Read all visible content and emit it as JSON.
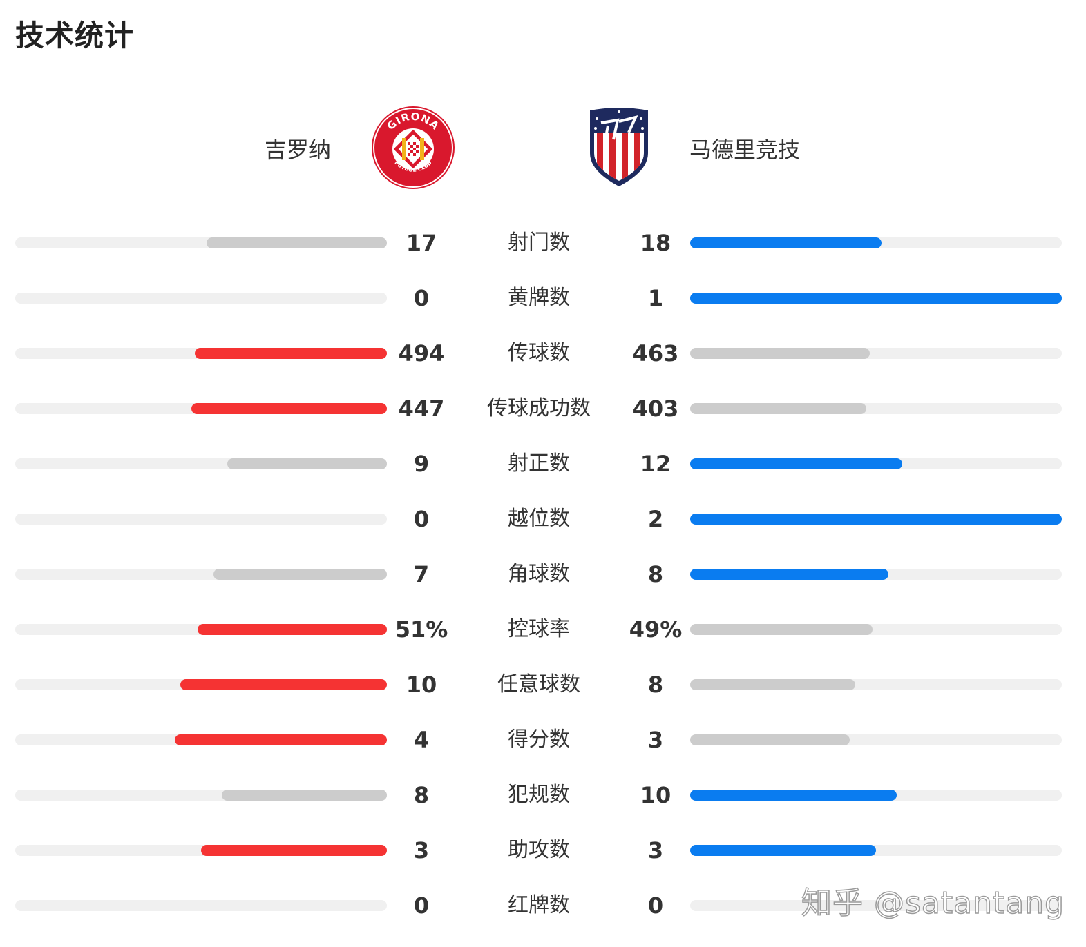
{
  "page": {
    "title": "技术统计"
  },
  "teams": {
    "home": {
      "name": "吉罗纳",
      "crest_text_top": "GIRONA",
      "crest_text_bottom": "FUTBOL CLUB"
    },
    "away": {
      "name": "马德里竞技"
    }
  },
  "colors": {
    "home_win": "#f53333",
    "away_win": "#0a7cf0",
    "loser": "#cccccc",
    "track": "#f0f0f0"
  },
  "stats": [
    {
      "label": "射门数",
      "home": "17",
      "away": "18",
      "home_pct": 0.485,
      "away_pct": 0.515,
      "leader": "away"
    },
    {
      "label": "黄牌数",
      "home": "0",
      "away": "1",
      "home_pct": 0,
      "away_pct": 1,
      "leader": "away"
    },
    {
      "label": "传球数",
      "home": "494",
      "away": "463",
      "home_pct": 0.516,
      "away_pct": 0.484,
      "leader": "home"
    },
    {
      "label": "传球成功数",
      "home": "447",
      "away": "403",
      "home_pct": 0.526,
      "away_pct": 0.474,
      "leader": "home"
    },
    {
      "label": "射正数",
      "home": "9",
      "away": "12",
      "home_pct": 0.429,
      "away_pct": 0.571,
      "leader": "away"
    },
    {
      "label": "越位数",
      "home": "0",
      "away": "2",
      "home_pct": 0,
      "away_pct": 1,
      "leader": "away"
    },
    {
      "label": "角球数",
      "home": "7",
      "away": "8",
      "home_pct": 0.467,
      "away_pct": 0.533,
      "leader": "away"
    },
    {
      "label": "控球率",
      "home": "51%",
      "away": "49%",
      "home_pct": 0.51,
      "away_pct": 0.49,
      "leader": "home"
    },
    {
      "label": "任意球数",
      "home": "10",
      "away": "8",
      "home_pct": 0.556,
      "away_pct": 0.444,
      "leader": "home"
    },
    {
      "label": "得分数",
      "home": "4",
      "away": "3",
      "home_pct": 0.571,
      "away_pct": 0.429,
      "leader": "home"
    },
    {
      "label": "犯规数",
      "home": "8",
      "away": "10",
      "home_pct": 0.444,
      "away_pct": 0.556,
      "leader": "away"
    },
    {
      "label": "助攻数",
      "home": "3",
      "away": "3",
      "home_pct": 0.5,
      "away_pct": 0.5,
      "leader": "both"
    },
    {
      "label": "红牌数",
      "home": "0",
      "away": "0",
      "home_pct": 0,
      "away_pct": 0,
      "leader": "none"
    }
  ],
  "watermark": "知乎 @satantang"
}
